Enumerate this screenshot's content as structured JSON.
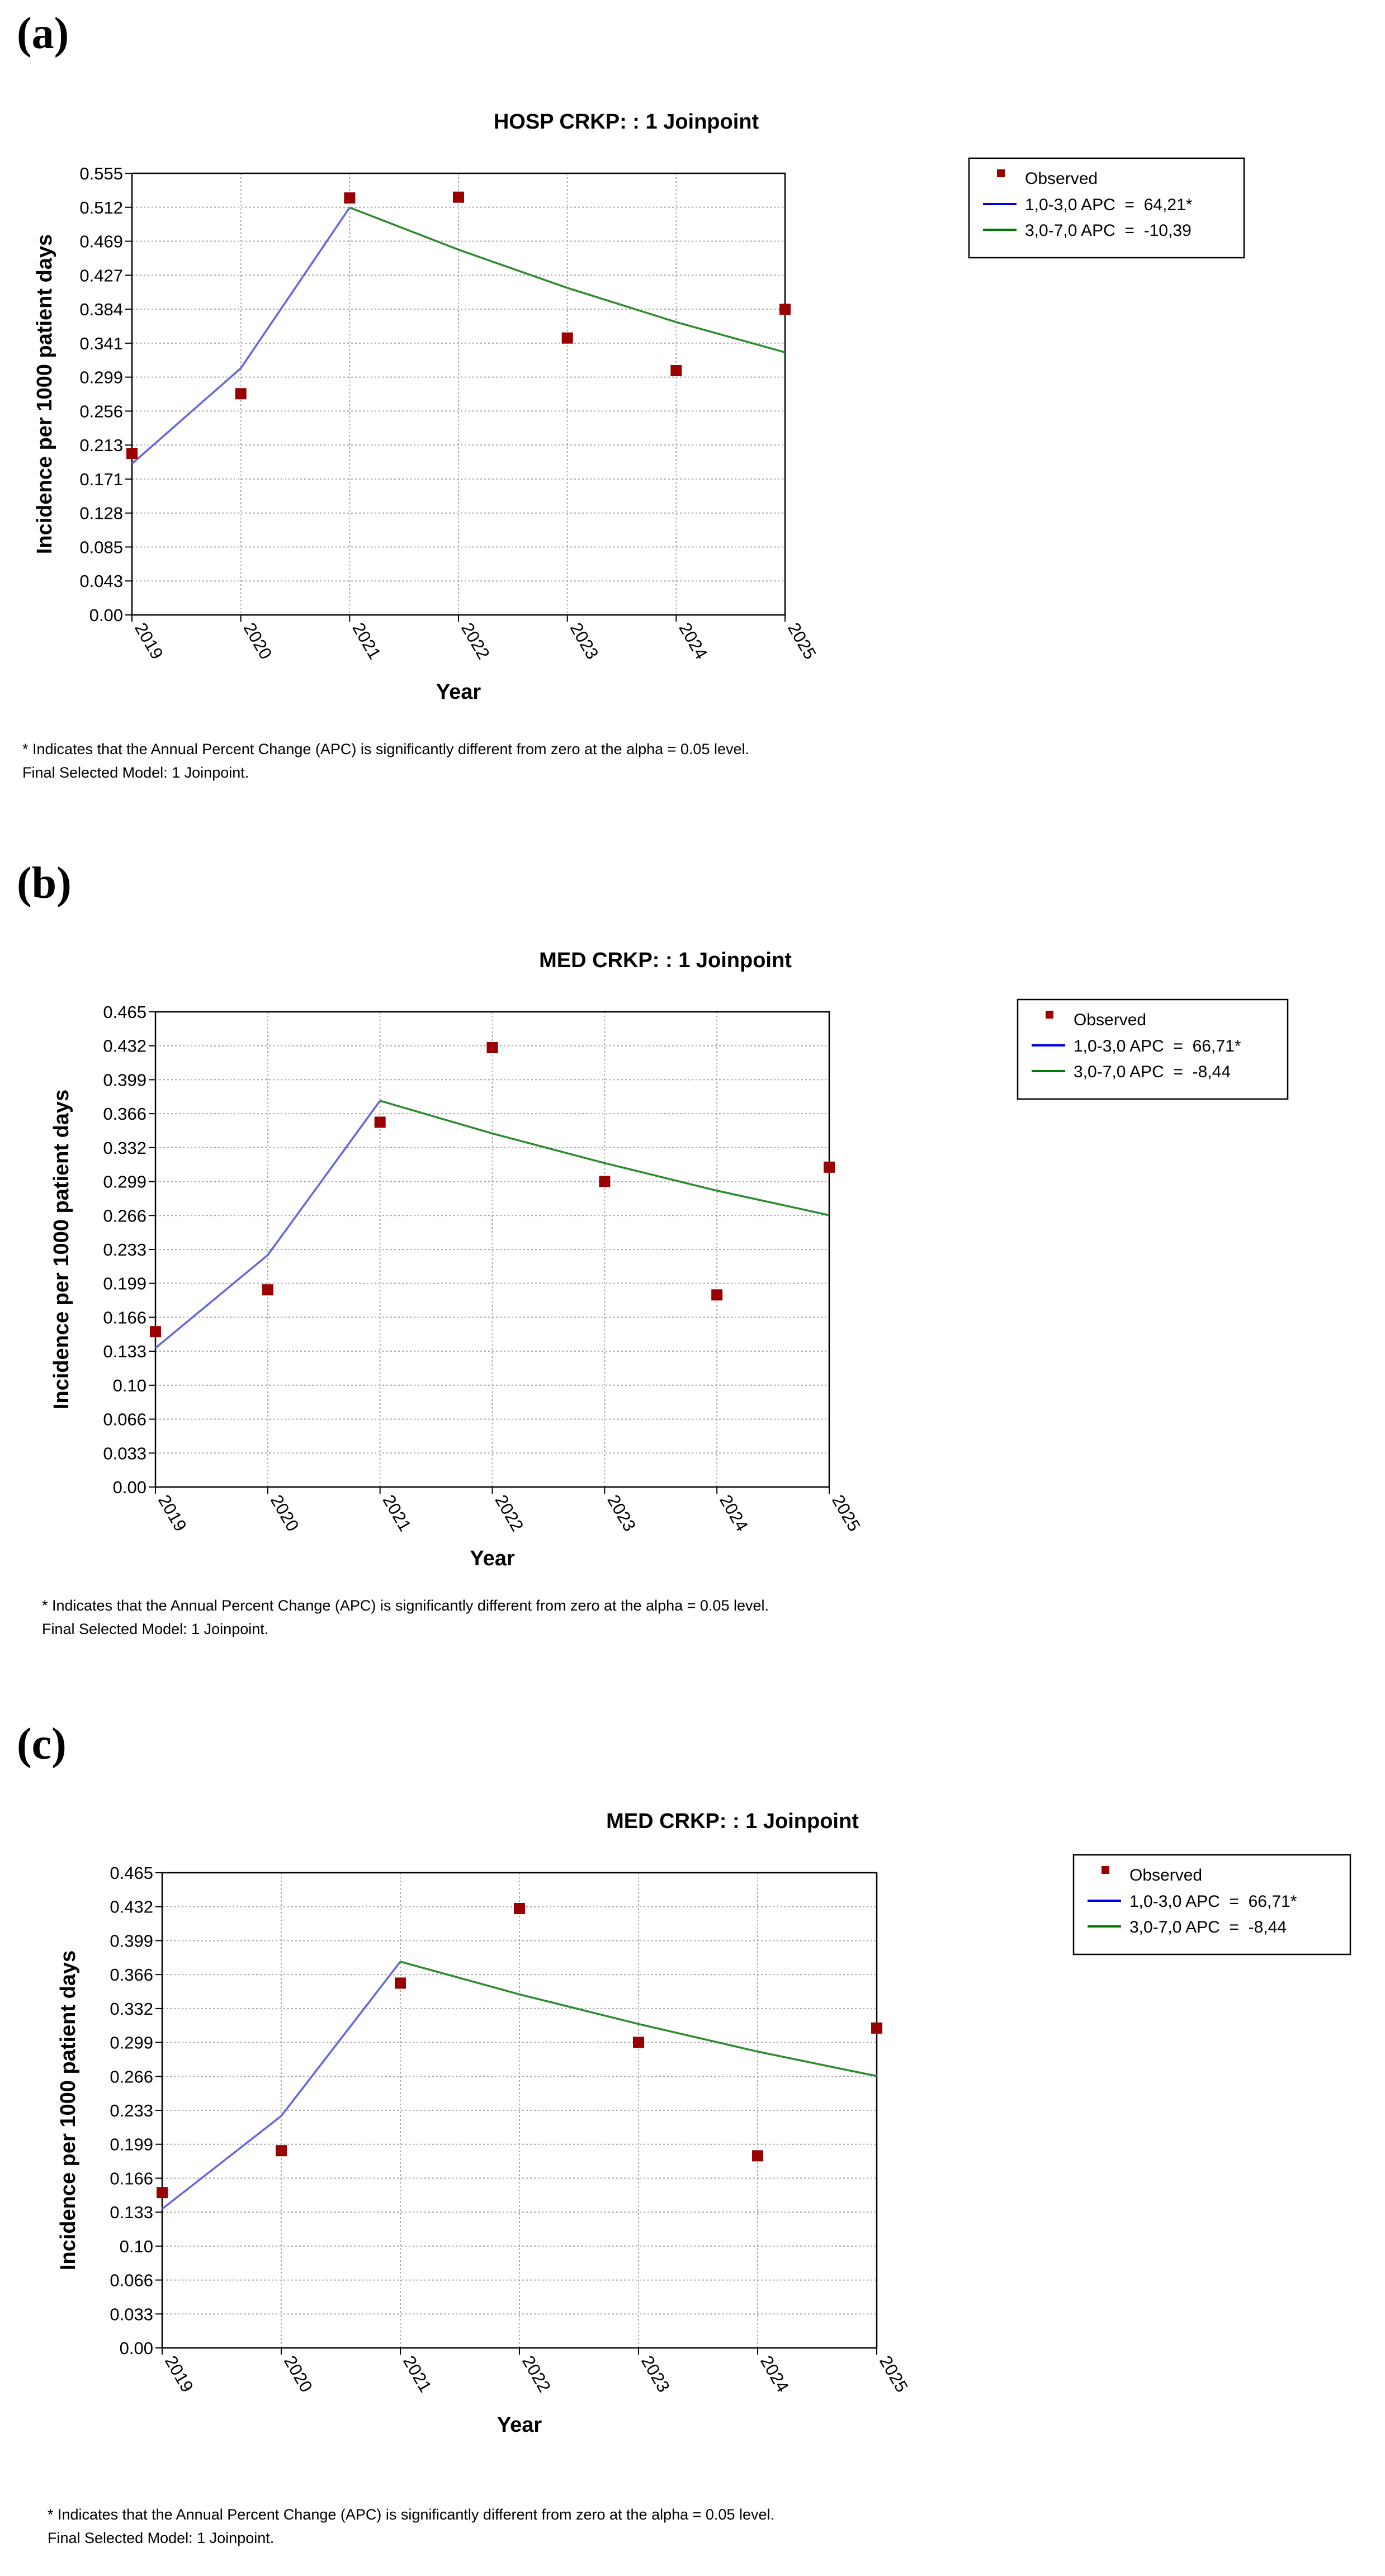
{
  "panels": {
    "a": {
      "label": "(a)",
      "note": "* Indicates that the Annual Percent Change (APC) is significantly different from zero at the alpha = 0.05 level.",
      "model": "Final Selected Model: 1 Joinpoint."
    },
    "b": {
      "label": "(b)",
      "note": "* Indicates that the Annual Percent Change (APC) is significantly different from zero at the alpha = 0.05 level.",
      "model": "Final Selected Model: 1 Joinpoint."
    },
    "c": {
      "label": "(c)",
      "note": "* Indicates that the Annual Percent Change (APC) is significantly different from zero at the alpha = 0.05 level.",
      "model": "Final Selected Model: 1 Joinpoint."
    }
  },
  "colors": {
    "observed": "#990000",
    "segment1": "#6666e0",
    "segment2": "#2e8b2e",
    "legend_segment1": "#0000ee",
    "legend_segment2": "#007a00",
    "grid": "#a8a8a8"
  },
  "chart_data": [
    {
      "panel": "a",
      "type": "scatter",
      "title": "HOSP CRKP: : 1 Joinpoint",
      "xlabel": "Year",
      "ylabel": "Incidence per 1000 patient days",
      "x_ticks": [
        "2019",
        "2020",
        "2021",
        "2022",
        "2023",
        "2024",
        "2025"
      ],
      "y_ticks": [
        "0.00",
        "0.043",
        "0.085",
        "0.128",
        "0.171",
        "0.213",
        "0.256",
        "0.299",
        "0.341",
        "0.384",
        "0.427",
        "0.469",
        "0.512",
        "0.555"
      ],
      "ylim": [
        0,
        0.555
      ],
      "grid": true,
      "legend_position": "right",
      "series": [
        {
          "name": "Observed",
          "kind": "points",
          "x": [
            2019,
            2020,
            2021,
            2022,
            2023,
            2024,
            2025
          ],
          "y": [
            0.203,
            0.278,
            0.524,
            0.525,
            0.348,
            0.307,
            0.384
          ]
        },
        {
          "name": "1,0-3,0 APC  =  64,21*",
          "kind": "line",
          "x": [
            2019,
            2020,
            2021
          ],
          "y": [
            0.19,
            0.31,
            0.512
          ]
        },
        {
          "name": "3,0-7,0 APC  =  -10,39",
          "kind": "line",
          "x": [
            2021,
            2022,
            2023,
            2024,
            2025
          ],
          "y": [
            0.512,
            0.459,
            0.411,
            0.368,
            0.33
          ]
        }
      ]
    },
    {
      "panel": "b",
      "type": "scatter",
      "title": "MED CRKP: : 1 Joinpoint",
      "xlabel": "Year",
      "ylabel": "Incidence per 1000 patient days",
      "x_ticks": [
        "2019",
        "2020",
        "2021",
        "2022",
        "2023",
        "2024",
        "2025"
      ],
      "y_ticks": [
        "0.00",
        "0.033",
        "0.066",
        "0.10",
        "0.133",
        "0.166",
        "0.199",
        "0.233",
        "0.266",
        "0.299",
        "0.332",
        "0.366",
        "0.399",
        "0.432",
        "0.465"
      ],
      "ylim": [
        0,
        0.465
      ],
      "grid": true,
      "legend_position": "right",
      "series": [
        {
          "name": "Observed",
          "kind": "points",
          "x": [
            2019,
            2020,
            2021,
            2022,
            2023,
            2024,
            2025
          ],
          "y": [
            0.152,
            0.193,
            0.357,
            0.43,
            0.299,
            0.188,
            0.313
          ]
        },
        {
          "name": "1,0-3,0 APC  =  66,71*",
          "kind": "line",
          "x": [
            2019,
            2020,
            2021
          ],
          "y": [
            0.136,
            0.227,
            0.378
          ]
        },
        {
          "name": "3,0-7,0 APC  =  -8,44",
          "kind": "line",
          "x": [
            2021,
            2022,
            2023,
            2024,
            2025
          ],
          "y": [
            0.378,
            0.346,
            0.317,
            0.29,
            0.266
          ]
        }
      ]
    },
    {
      "panel": "c",
      "type": "scatter",
      "title": "MED CRKP: : 1 Joinpoint",
      "xlabel": "Year",
      "ylabel": "Incidence per 1000 patient days",
      "x_ticks": [
        "2019",
        "2020",
        "2021",
        "2022",
        "2023",
        "2024",
        "2025"
      ],
      "y_ticks": [
        "0.00",
        "0.033",
        "0.066",
        "0.10",
        "0.133",
        "0.166",
        "0.199",
        "0.233",
        "0.266",
        "0.299",
        "0.332",
        "0.366",
        "0.399",
        "0.432",
        "0.465"
      ],
      "ylim": [
        0,
        0.465
      ],
      "grid": true,
      "legend_position": "right",
      "series": [
        {
          "name": "Observed",
          "kind": "points",
          "x": [
            2019,
            2020,
            2021,
            2022,
            2023,
            2024,
            2025
          ],
          "y": [
            0.152,
            0.193,
            0.357,
            0.43,
            0.299,
            0.188,
            0.313
          ]
        },
        {
          "name": "1,0-3,0 APC  =  66,71*",
          "kind": "line",
          "x": [
            2019,
            2020,
            2021
          ],
          "y": [
            0.136,
            0.227,
            0.378
          ]
        },
        {
          "name": "3,0-7,0 APC  =  -8,44",
          "kind": "line",
          "x": [
            2021,
            2022,
            2023,
            2024,
            2025
          ],
          "y": [
            0.378,
            0.346,
            0.317,
            0.29,
            0.266
          ]
        }
      ]
    }
  ]
}
